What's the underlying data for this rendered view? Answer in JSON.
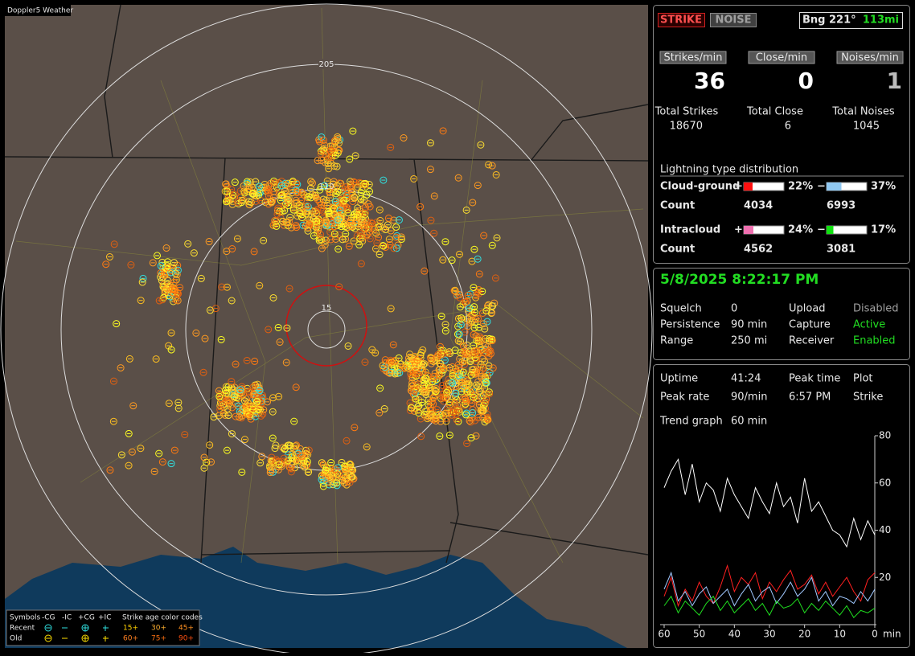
{
  "map": {
    "title": "Doppler5 Weather",
    "range_labels": [
      "205",
      "110",
      "15"
    ],
    "legend": {
      "symbols_title": "Symbols",
      "columns": [
        "-CG",
        "-IC",
        "+CG",
        "+IC"
      ],
      "rows": [
        "Recent",
        "Old"
      ],
      "age_title": "Strike age color codes",
      "recent_ages": [
        "15+",
        "30+",
        "45+"
      ],
      "old_ages": [
        "60+",
        "75+",
        "90+"
      ]
    }
  },
  "status": {
    "strike_button": "STRIKE",
    "noise_button": "NOISE",
    "bearing": "Bng 221°",
    "distance": "113mi"
  },
  "rates": [
    {
      "label": "Strikes/min",
      "value": 36
    },
    {
      "label": "Close/min",
      "value": 0
    },
    {
      "label": "Noises/min",
      "value": 1
    }
  ],
  "totals": [
    {
      "label": "Total Strikes",
      "value": 18670
    },
    {
      "label": "Total Close",
      "value": 6
    },
    {
      "label": "Total Noises",
      "value": 1045
    }
  ],
  "distribution": {
    "title": "Lightning type distribution",
    "count_label": "Count",
    "rows": [
      {
        "label": "Cloud-ground",
        "pos_sign": "+",
        "neg_sign": "−",
        "pos_percent": 22,
        "pos_percent_label": "22%",
        "pos_color": "#ff1010",
        "neg_percent": 37,
        "neg_percent_label": "37%",
        "neg_color": "#90c8f0",
        "pos_count": 4034,
        "neg_count": 6993
      },
      {
        "label": "Intracloud",
        "pos_sign": "+",
        "neg_sign": "−",
        "pos_percent": 24,
        "pos_percent_label": "24%",
        "pos_color": "#f070b0",
        "neg_percent": 17,
        "neg_percent_label": "17%",
        "neg_color": "#10e010",
        "pos_count": 4562,
        "neg_count": 3081
      }
    ]
  },
  "datetime": "5/8/2025 8:22:17 PM",
  "settings": [
    [
      "Squelch",
      "0",
      "Upload",
      "Disabled"
    ],
    [
      "Persistence",
      "90 min",
      "Capture",
      "Active"
    ],
    [
      "Range",
      "250 mi",
      "Receiver",
      "Enabled"
    ]
  ],
  "stats": [
    [
      "Uptime",
      "41:24",
      "Peak time",
      "Plot"
    ],
    [
      "Peak rate",
      "90/min",
      "6:57 PM",
      "Strike"
    ]
  ],
  "trend_label": "Trend graph",
  "trend_window": "60 min",
  "trend": {
    "type": "line",
    "x_unit": "min",
    "xlim": [
      60,
      0
    ],
    "xticks": [
      60,
      50,
      40,
      30,
      20,
      10,
      0
    ],
    "ylim": [
      0,
      80
    ],
    "yticks": [
      20,
      40,
      60,
      80
    ],
    "x": [
      60,
      58,
      56,
      54,
      52,
      50,
      48,
      46,
      44,
      42,
      40,
      38,
      36,
      34,
      32,
      30,
      28,
      26,
      24,
      22,
      20,
      18,
      16,
      14,
      12,
      10,
      8,
      6,
      4,
      2,
      0
    ],
    "series": [
      {
        "color": "#ffffff",
        "values": [
          58,
          65,
          70,
          55,
          68,
          52,
          60,
          57,
          48,
          62,
          55,
          50,
          45,
          58,
          52,
          47,
          60,
          50,
          54,
          43,
          62,
          48,
          52,
          46,
          40,
          38,
          33,
          45,
          36,
          44,
          38
        ]
      },
      {
        "color": "#ff2020",
        "values": [
          12,
          20,
          8,
          15,
          10,
          18,
          12,
          9,
          16,
          25,
          14,
          20,
          17,
          22,
          11,
          18,
          14,
          19,
          23,
          15,
          17,
          21,
          13,
          18,
          12,
          16,
          20,
          14,
          10,
          19,
          22
        ]
      },
      {
        "color": "#a0c8ff",
        "values": [
          15,
          22,
          10,
          14,
          8,
          13,
          16,
          9,
          12,
          15,
          8,
          13,
          17,
          10,
          14,
          16,
          9,
          13,
          18,
          12,
          15,
          20,
          10,
          14,
          8,
          12,
          11,
          9,
          14,
          10,
          15
        ]
      },
      {
        "color": "#20e020",
        "values": [
          8,
          12,
          5,
          10,
          7,
          4,
          9,
          12,
          6,
          10,
          5,
          8,
          11,
          6,
          9,
          4,
          10,
          7,
          8,
          11,
          5,
          9,
          6,
          10,
          7,
          4,
          8,
          3,
          6,
          5,
          7
        ]
      }
    ]
  }
}
